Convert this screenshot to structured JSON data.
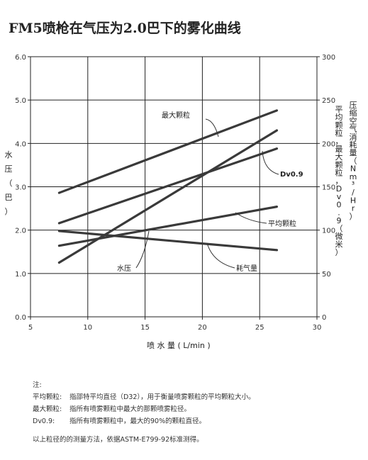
{
  "title": "FM5喷枪在气压为2.0巴下的雾化曲线",
  "axes": {
    "x_label": "喷 水 量   ( L/min )",
    "y_left_label": "水压（巴）",
    "y_right_label_1": "平均颗粒，最大颗粒，Dv0.9（微米）",
    "y_right_label_2": "压缩空气消耗量（Nm³/Hr）"
  },
  "chart_data": {
    "type": "line",
    "title": "FM5喷枪在气压为2.0巴下的雾化曲线",
    "xlabel": "喷 水 量   ( L/min )",
    "ylabel_left": "水压（巴）",
    "ylabel_right": "平均颗粒，最大颗粒，Dv0.9（微米）/ 压缩空气消耗量（Nm³/Hr）",
    "xlim": [
      5,
      30
    ],
    "ylim_left": [
      0.0,
      6.0
    ],
    "ylim_right": [
      0,
      300
    ],
    "x_ticks": [
      "5",
      "10",
      "15",
      "20",
      "25",
      "30"
    ],
    "y_left_ticks": [
      "0.0",
      "1.0",
      "2.0",
      "3.0",
      "4.0",
      "5.0",
      "6.0"
    ],
    "y_right_ticks": [
      "0",
      "50",
      "100",
      "150",
      "200",
      "250",
      "300"
    ],
    "grid": true,
    "series": [
      {
        "name": "最大颗粒",
        "axis": "right",
        "x": [
          7.5,
          26.5
        ],
        "y": [
          143,
          238
        ]
      },
      {
        "name": "Dv0.9",
        "axis": "right",
        "x": [
          7.5,
          26.5
        ],
        "y": [
          108,
          194
        ]
      },
      {
        "name": "平均颗粒",
        "axis": "right",
        "x": [
          7.5,
          26.5
        ],
        "y": [
          82,
          127
        ]
      },
      {
        "name": "耗气量",
        "axis": "right",
        "x": [
          7.5,
          26.5
        ],
        "y": [
          99,
          77
        ]
      },
      {
        "name": "水压",
        "axis": "left",
        "x": [
          7.5,
          26.5
        ],
        "y": [
          1.25,
          4.3
        ]
      }
    ],
    "annotations": [
      "最大颗粒",
      "Dv0.9",
      "平均颗粒",
      "耗气量",
      "水压"
    ]
  },
  "notes": {
    "heading": "注:",
    "items": [
      {
        "key": "平均颗粒:",
        "text": "指邵特平均直径（D32），用于衡量喷雾颗粒的平均颗粒大小。"
      },
      {
        "key": "最大颗粒:",
        "text": "指所有喷雾颗粒中最大的那颗喷雾粒径。"
      },
      {
        "key": "Dv0.9:",
        "text": "指所有喷雾颗粒中，最大的90%的颗粒直径。"
      }
    ],
    "footer": "以上粒径的的测量方法，依据ASTM-E799-92标准测得。"
  }
}
